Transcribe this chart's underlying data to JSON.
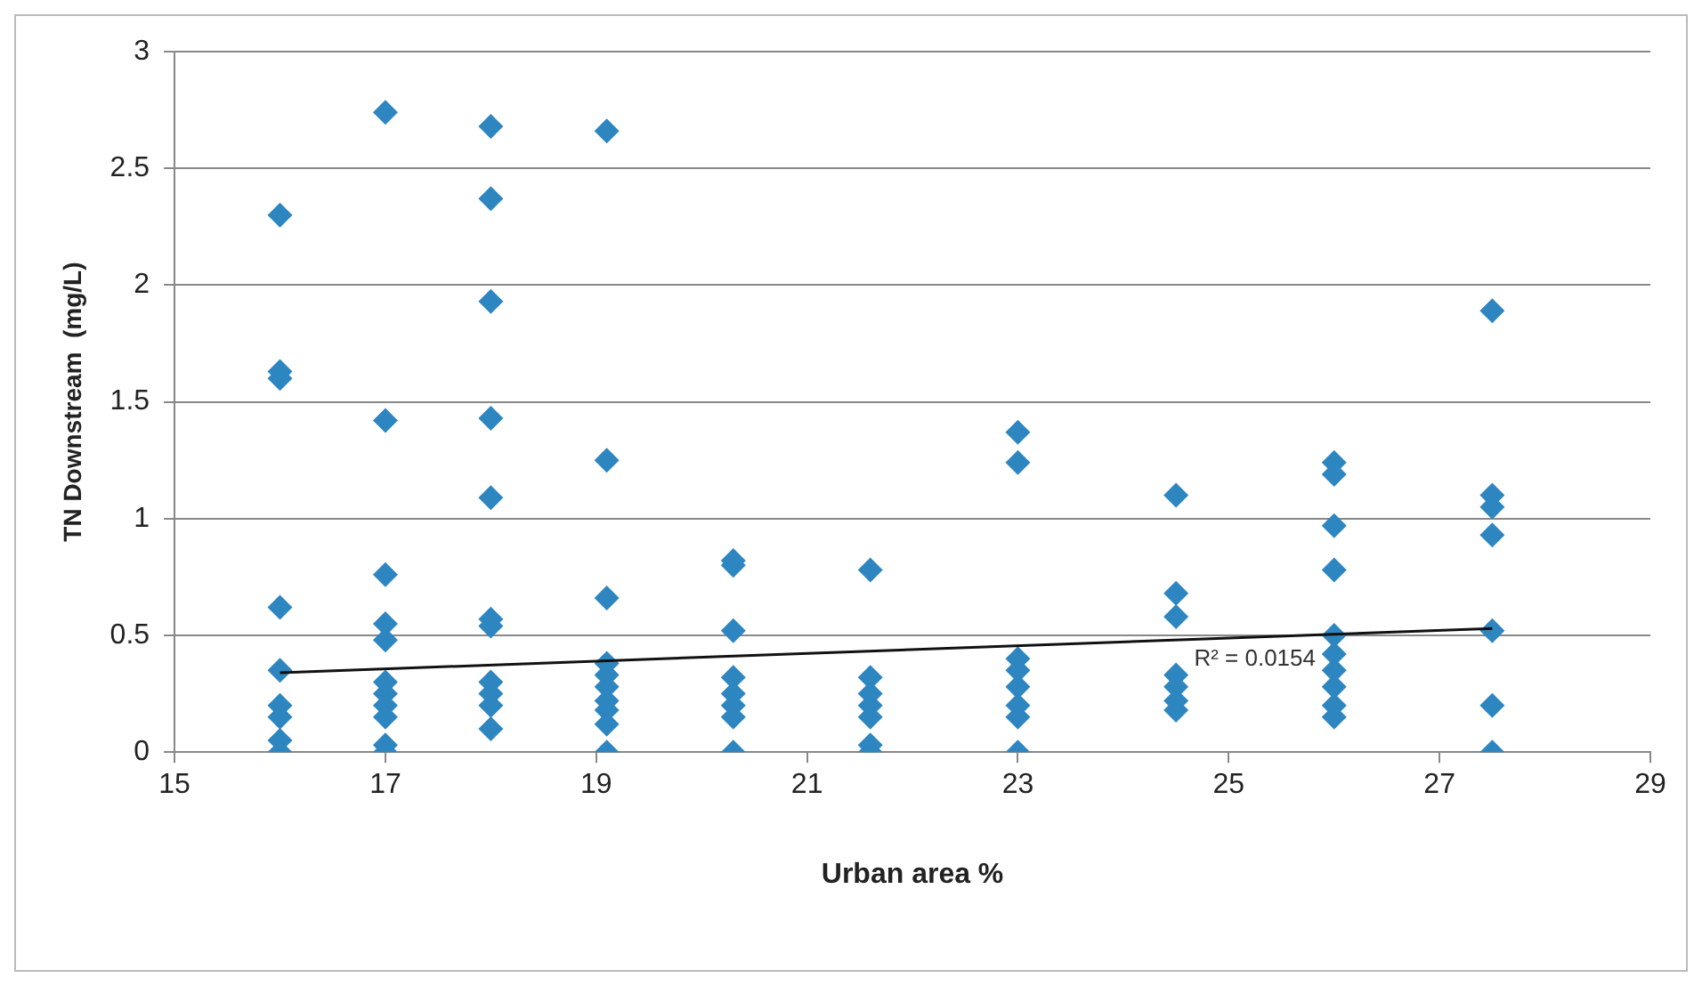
{
  "chart_data": {
    "type": "scatter",
    "xlabel": "Urban area %",
    "ylabel": "TN Downstream  (mg/L)",
    "xlim": [
      15,
      29
    ],
    "xticks": [
      15,
      17,
      19,
      21,
      23,
      25,
      27,
      29
    ],
    "ylim": [
      0,
      3
    ],
    "yticks": [
      0,
      0.5,
      1,
      1.5,
      2,
      2.5,
      3
    ],
    "grid": "y",
    "legend": false,
    "marker": "diamond",
    "series": [
      {
        "color": "#2e86c1",
        "x": [
          16,
          16,
          16,
          16,
          16,
          16,
          16,
          16,
          16,
          17,
          17,
          17,
          17,
          17,
          17,
          17,
          17,
          17,
          17,
          17,
          18,
          18,
          18,
          18,
          18,
          18,
          18,
          18,
          18,
          18,
          18,
          19.1,
          19.1,
          19.1,
          19.1,
          19.1,
          19.1,
          19.1,
          19.1,
          19.1,
          19.1,
          20.3,
          20.3,
          20.3,
          20.3,
          20.3,
          20.3,
          20.3,
          20.3,
          21.6,
          21.6,
          21.6,
          21.6,
          21.6,
          21.6,
          21.6,
          23,
          23,
          23,
          23,
          23,
          23,
          23,
          23,
          24.5,
          24.5,
          24.5,
          24.5,
          24.5,
          24.5,
          24.5,
          26,
          26,
          26,
          26,
          26,
          26,
          26,
          26,
          26,
          26,
          27.5,
          27.5,
          27.5,
          27.5,
          27.5,
          27.5,
          27.5
        ],
        "values": [
          2.3,
          1.63,
          1.6,
          0.62,
          0.35,
          0.2,
          0.15,
          0.05,
          0,
          2.74,
          1.42,
          0.76,
          0.55,
          0.48,
          0.3,
          0.25,
          0.2,
          0.15,
          0.03,
          0,
          2.68,
          2.37,
          1.93,
          1.43,
          1.09,
          0.57,
          0.54,
          0.3,
          0.25,
          0.2,
          0.1,
          2.66,
          1.25,
          0.66,
          0.38,
          0.33,
          0.28,
          0.22,
          0.18,
          0.12,
          0,
          0.82,
          0.8,
          0.52,
          0.32,
          0.25,
          0.2,
          0.15,
          0,
          0.78,
          0.32,
          0.25,
          0.2,
          0.15,
          0.03,
          0,
          1.37,
          1.24,
          0.4,
          0.35,
          0.28,
          0.2,
          0.15,
          0,
          1.1,
          0.68,
          0.58,
          0.33,
          0.28,
          0.22,
          0.18,
          1.24,
          1.19,
          0.97,
          0.78,
          0.5,
          0.42,
          0.35,
          0.28,
          0.2,
          0.15,
          1.89,
          1.1,
          1.05,
          0.93,
          0.52,
          0.2,
          0
        ]
      },
      {
        "type": "line",
        "color": "#111111",
        "marker": "none",
        "x": [
          16,
          27.5
        ],
        "values": [
          0.34,
          0.53
        ]
      }
    ],
    "annotations": [
      "R² = 0.0154"
    ]
  }
}
